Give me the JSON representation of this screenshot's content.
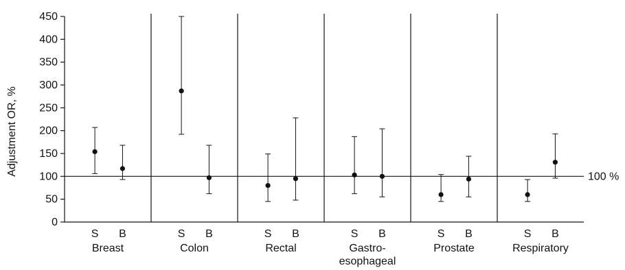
{
  "chart_data": {
    "type": "scatter",
    "ylabel": "Adjustment OR, %",
    "ylim": [
      0,
      450
    ],
    "yticks": [
      0,
      50,
      100,
      150,
      200,
      250,
      300,
      350,
      400,
      450
    ],
    "reference_line": {
      "value": 100,
      "label": "100 %"
    },
    "grid": false,
    "sublabels": [
      "S",
      "B"
    ],
    "groups": [
      {
        "name": "Breast",
        "points": [
          {
            "label": "S",
            "value": 154,
            "low": 106,
            "high": 207
          },
          {
            "label": "B",
            "value": 117,
            "low": 93,
            "high": 168
          }
        ]
      },
      {
        "name": "Colon",
        "points": [
          {
            "label": "S",
            "value": 287,
            "low": 192,
            "high": 450
          },
          {
            "label": "B",
            "value": 97,
            "low": 62,
            "high": 168
          }
        ]
      },
      {
        "name": "Rectal",
        "points": [
          {
            "label": "S",
            "value": 80,
            "low": 45,
            "high": 149
          },
          {
            "label": "B",
            "value": 95,
            "low": 48,
            "high": 228
          }
        ]
      },
      {
        "name": "Gastro-\nesophageal",
        "points": [
          {
            "label": "S",
            "value": 103,
            "low": 62,
            "high": 187
          },
          {
            "label": "B",
            "value": 100,
            "low": 55,
            "high": 204
          }
        ]
      },
      {
        "name": "Prostate",
        "points": [
          {
            "label": "S",
            "value": 60,
            "low": 45,
            "high": 104
          },
          {
            "label": "B",
            "value": 94,
            "low": 55,
            "high": 144
          }
        ]
      },
      {
        "name": "Respiratory",
        "points": [
          {
            "label": "S",
            "value": 60,
            "low": 45,
            "high": 93
          },
          {
            "label": "B",
            "value": 131,
            "low": 96,
            "high": 193
          }
        ]
      }
    ]
  }
}
